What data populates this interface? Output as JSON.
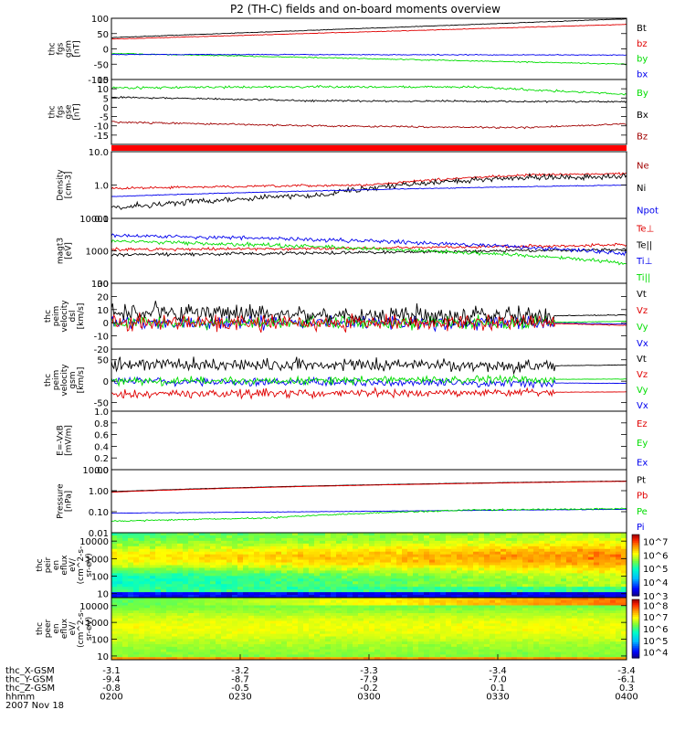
{
  "title": "P2 (TH-C) fields and on-board moments overview",
  "colors": {
    "black": "#000000",
    "red": "#e00000",
    "green": "#00dd00",
    "blue": "#0000ee",
    "darkred": "#a00000"
  },
  "chart_data": [
    {
      "type": "line",
      "name": "fgs-gsm",
      "ylabel": [
        "thc",
        "fgs",
        "gsm",
        "[nT]"
      ],
      "ylim": [
        -100,
        100
      ],
      "yticks": [
        "100",
        "50",
        "0",
        "-50",
        "-100"
      ],
      "yvals": [
        100,
        50,
        0,
        -50,
        -100
      ],
      "scale": "linear",
      "legend": [
        {
          "label": "Bt",
          "color": "#000000"
        },
        {
          "label": "bz",
          "color": "#e00000"
        },
        {
          "label": "by",
          "color": "#00dd00"
        },
        {
          "label": "bx",
          "color": "#0000ee"
        }
      ],
      "series": [
        {
          "name": "Bt",
          "color": "#000000",
          "x": [
            0,
            1
          ],
          "y": [
            37,
            98
          ],
          "noise": 0.8
        },
        {
          "name": "bz",
          "color": "#e00000",
          "x": [
            0,
            1
          ],
          "y": [
            32,
            80
          ],
          "noise": 0.8
        },
        {
          "name": "by",
          "color": "#00dd00",
          "x": [
            0,
            0.3,
            1
          ],
          "y": [
            -15,
            -25,
            -50
          ],
          "noise": 1.5
        },
        {
          "name": "bx",
          "color": "#0000ee",
          "x": [
            0,
            1
          ],
          "y": [
            -18,
            -20
          ],
          "noise": 1.2
        }
      ]
    },
    {
      "type": "line",
      "name": "fgs-gse",
      "ylabel": [
        "thc",
        "fgs",
        "gse",
        "[nT]"
      ],
      "ylim": [
        -20,
        15
      ],
      "yticks": [
        "15",
        "10",
        "5",
        "0",
        "-5",
        "-10",
        "-15"
      ],
      "yvals": [
        15,
        10,
        5,
        0,
        -5,
        -10,
        -15
      ],
      "scale": "linear",
      "legend": [
        {
          "label": "By",
          "color": "#00dd00"
        },
        {
          "label": "Bx",
          "color": "#000000"
        },
        {
          "label": "Bz",
          "color": "#a00000"
        }
      ],
      "series": [
        {
          "name": "By",
          "color": "#00dd00",
          "x": [
            0,
            0.3,
            0.7,
            1
          ],
          "y": [
            10.5,
            11,
            11,
            7
          ],
          "noise": 0.5
        },
        {
          "name": "Bx",
          "color": "#000000",
          "x": [
            0,
            0.4,
            1
          ],
          "y": [
            5.5,
            3.5,
            3
          ],
          "noise": 0.4
        },
        {
          "name": "Bz",
          "color": "#a00000",
          "x": [
            0,
            0.4,
            0.8,
            1
          ],
          "y": [
            -8,
            -10,
            -11,
            -9
          ],
          "noise": 0.4
        }
      ]
    },
    {
      "type": "line",
      "name": "density",
      "ylabel": [
        "Density",
        "[cm-3]"
      ],
      "ylim": [
        0.1,
        10
      ],
      "yticks": [
        "10.0",
        "1.0",
        "0.1"
      ],
      "yvals": [
        10,
        1,
        0.1
      ],
      "scale": "log",
      "legend": [
        {
          "label": "Ne",
          "color": "#a00000"
        },
        {
          "label": "Ni",
          "color": "#000000"
        },
        {
          "label": "Npot",
          "color": "#0000ee"
        }
      ],
      "series": [
        {
          "name": "Ne",
          "color": "#e00000",
          "x": [
            0,
            0.5,
            0.8,
            1
          ],
          "y": [
            0.8,
            1.0,
            2.0,
            2.2
          ],
          "noise": 0.03
        },
        {
          "name": "Ni",
          "color": "#000000",
          "x": [
            0,
            0.4,
            0.8,
            1
          ],
          "y": [
            0.2,
            0.5,
            1.7,
            1.8
          ],
          "noise": 0.07
        },
        {
          "name": "Npot",
          "color": "#0000ee",
          "x": [
            0,
            1
          ],
          "y": [
            0.45,
            1.0
          ],
          "noise": 0.01
        }
      ]
    },
    {
      "type": "line",
      "name": "temperature",
      "ylabel": [
        "magt3",
        "[eV]"
      ],
      "ylim": [
        100,
        10000
      ],
      "yticks": [
        "10000",
        "1000",
        "100"
      ],
      "yvals": [
        10000,
        1000,
        100
      ],
      "scale": "log",
      "legend": [
        {
          "label": "Te⊥",
          "color": "#e00000"
        },
        {
          "label": "Te||",
          "color": "#000000"
        },
        {
          "label": "Ti⊥",
          "color": "#0000ee"
        },
        {
          "label": "Ti||",
          "color": "#00dd00"
        }
      ],
      "series": [
        {
          "name": "Te⊥",
          "color": "#e00000",
          "x": [
            0,
            0.5,
            1
          ],
          "y": [
            1100,
            1200,
            1500
          ],
          "noise": 0.04
        },
        {
          "name": "Te||",
          "color": "#000000",
          "x": [
            0,
            0.4,
            1
          ],
          "y": [
            750,
            850,
            1100
          ],
          "noise": 0.04
        },
        {
          "name": "Ti⊥",
          "color": "#0000ee",
          "x": [
            0,
            0.6,
            1
          ],
          "y": [
            3000,
            1800,
            800
          ],
          "noise": 0.05
        },
        {
          "name": "Ti||",
          "color": "#00dd00",
          "x": [
            0,
            0.6,
            1
          ],
          "y": [
            2000,
            1000,
            420
          ],
          "noise": 0.05
        }
      ]
    },
    {
      "type": "line",
      "name": "velocity-dsl",
      "ylabel": [
        "thc",
        "peim",
        "velocity",
        "dsl",
        "[km/s]"
      ],
      "ylim": [
        -20,
        30
      ],
      "yticks": [
        "30",
        "20",
        "10",
        "0",
        "-10",
        "-20"
      ],
      "yvals": [
        30,
        20,
        10,
        0,
        -10,
        -20
      ],
      "scale": "linear",
      "legend": [
        {
          "label": "Vt",
          "color": "#000000"
        },
        {
          "label": "Vz",
          "color": "#e00000"
        },
        {
          "label": "Vy",
          "color": "#00dd00"
        },
        {
          "label": "Vx",
          "color": "#0000ee"
        }
      ],
      "series": [
        {
          "name": "Vx",
          "color": "#0000ee",
          "x": [
            0,
            0.8,
            1
          ],
          "y": [
            0,
            0,
            -1
          ],
          "noise": 4
        },
        {
          "name": "Vy",
          "color": "#00dd00",
          "x": [
            0,
            0.8,
            1
          ],
          "y": [
            0,
            0,
            1
          ],
          "noise": 4
        },
        {
          "name": "Vt",
          "color": "#000000",
          "x": [
            0,
            0.8,
            1
          ],
          "y": [
            8,
            5,
            6
          ],
          "noise": 6
        },
        {
          "name": "Vz",
          "color": "#e00000",
          "x": [
            0,
            0.8,
            1
          ],
          "y": [
            0,
            0,
            -2
          ],
          "noise": 5
        }
      ]
    },
    {
      "type": "line",
      "name": "velocity-gsm",
      "ylabel": [
        "thc",
        "peim",
        "velocity",
        "gsm",
        "[km/s]"
      ],
      "ylim": [
        -70,
        75
      ],
      "yticks": [
        "50",
        "0",
        "-50"
      ],
      "yvals": [
        50,
        0,
        -50
      ],
      "scale": "linear",
      "legend": [
        {
          "label": "Vt",
          "color": "#000000"
        },
        {
          "label": "Vz",
          "color": "#e00000"
        },
        {
          "label": "Vy",
          "color": "#00dd00"
        },
        {
          "label": "Vx",
          "color": "#0000ee"
        }
      ],
      "series": [
        {
          "name": "Vx",
          "color": "#0000ee",
          "x": [
            0,
            1
          ],
          "y": [
            0,
            -5
          ],
          "noise": 8
        },
        {
          "name": "Vt",
          "color": "#000000",
          "x": [
            0,
            0.8,
            1
          ],
          "y": [
            40,
            35,
            38
          ],
          "noise": 12
        },
        {
          "name": "Vy",
          "color": "#00dd00",
          "x": [
            0,
            1
          ],
          "y": [
            0,
            5
          ],
          "noise": 8
        },
        {
          "name": "Vz",
          "color": "#e00000",
          "x": [
            0,
            1
          ],
          "y": [
            -30,
            -25
          ],
          "noise": 8
        }
      ]
    },
    {
      "type": "line",
      "name": "efield",
      "ylabel": [
        "E=-VxB",
        "[mV/m]"
      ],
      "ylim": [
        0,
        1
      ],
      "yticks": [
        "1.0",
        "0.8",
        "0.6",
        "0.4",
        "0.2",
        "0.0"
      ],
      "yvals": [
        1,
        0.8,
        0.6,
        0.4,
        0.2,
        0
      ],
      "scale": "linear",
      "legend": [
        {
          "label": "Ez",
          "color": "#e00000"
        },
        {
          "label": "Ey",
          "color": "#00dd00"
        },
        {
          "label": "Ex",
          "color": "#0000ee"
        }
      ],
      "series": []
    },
    {
      "type": "line",
      "name": "pressure",
      "ylabel": [
        "Pressure",
        "[nPa]"
      ],
      "ylim": [
        0.01,
        10
      ],
      "yticks": [
        "10.00",
        "1.00",
        "0.10",
        "0.01"
      ],
      "yvals": [
        10,
        1,
        0.1,
        0.01
      ],
      "scale": "log",
      "legend": [
        {
          "label": "Pt",
          "color": "#000000"
        },
        {
          "label": "Pb",
          "color": "#e00000"
        },
        {
          "label": "Pe",
          "color": "#00dd00"
        },
        {
          "label": "Pi",
          "color": "#0000ee"
        }
      ],
      "series": [
        {
          "name": "Pt",
          "color": "#000000",
          "x": [
            0,
            1
          ],
          "y": [
            0.9,
            2.9
          ],
          "noise": 0.005
        },
        {
          "name": "Pb",
          "color": "#e00000",
          "x": [
            0,
            1
          ],
          "y": [
            0.85,
            2.8
          ],
          "noise": 0.005
        },
        {
          "name": "Pi",
          "color": "#0000ee",
          "x": [
            0,
            0.4,
            1
          ],
          "y": [
            0.085,
            0.1,
            0.13
          ],
          "noise": 0.01
        },
        {
          "name": "Pe",
          "color": "#00dd00",
          "x": [
            0,
            0.3,
            0.7,
            1
          ],
          "y": [
            0.035,
            0.05,
            0.12,
            0.14
          ],
          "noise": 0.03
        }
      ]
    },
    {
      "type": "heatmap",
      "name": "peir-eflux",
      "ylabel": [
        "thc",
        "peir",
        "en",
        "eflux",
        "eV/",
        "(cm^2-s-",
        "sr-eV)"
      ],
      "ylim": [
        6,
        30000
      ],
      "yticks": [
        "10000",
        "1000",
        "100",
        "10"
      ],
      "yvals": [
        10000,
        1000,
        100,
        10
      ],
      "scale": "log",
      "colorbar": {
        "ticks": [
          "10^7",
          "10^6",
          "10^5",
          "10^4",
          "10^3"
        ],
        "exps": [
          7,
          6,
          5,
          4,
          3
        ]
      },
      "zlim_exp": [
        3,
        7.5
      ],
      "profile": "ion"
    },
    {
      "type": "heatmap",
      "name": "peer-eflux",
      "ylabel": [
        "thc",
        "peer",
        "en",
        "eflux",
        "eV/",
        "(cm^2-s-",
        "sr-eV)"
      ],
      "ylim": [
        6,
        30000
      ],
      "yticks": [
        "10000",
        "1000",
        "100",
        "10"
      ],
      "yvals": [
        10000,
        1000,
        100,
        10
      ],
      "scale": "log",
      "colorbar": {
        "ticks": [
          "10^8",
          "10^7",
          "10^6",
          "10^5",
          "10^4"
        ],
        "exps": [
          8,
          7,
          6,
          5,
          4
        ]
      },
      "zlim_exp": [
        3.5,
        8.5
      ],
      "profile": "electron"
    }
  ],
  "xaxis": {
    "row_labels": [
      "thc_X-GSM",
      "thc_Y-GSM",
      "thc_Z-GSM",
      "hhmm",
      "2007 Nov 18"
    ],
    "ticks": [
      {
        "x": 0.0,
        "vals": [
          "-3.1",
          "-9.4",
          "-0.8",
          "0200"
        ]
      },
      {
        "x": 0.25,
        "vals": [
          "-3.2",
          "-8.7",
          "-0.5",
          "0230"
        ]
      },
      {
        "x": 0.5,
        "vals": [
          "-3.3",
          "-7.9",
          "-0.2",
          "0300"
        ]
      },
      {
        "x": 0.75,
        "vals": [
          "-3.4",
          "-7.0",
          "0.1",
          "0330"
        ]
      },
      {
        "x": 1.0,
        "vals": [
          "-3.4",
          "-6.1",
          "0.3",
          "0400"
        ]
      }
    ]
  }
}
